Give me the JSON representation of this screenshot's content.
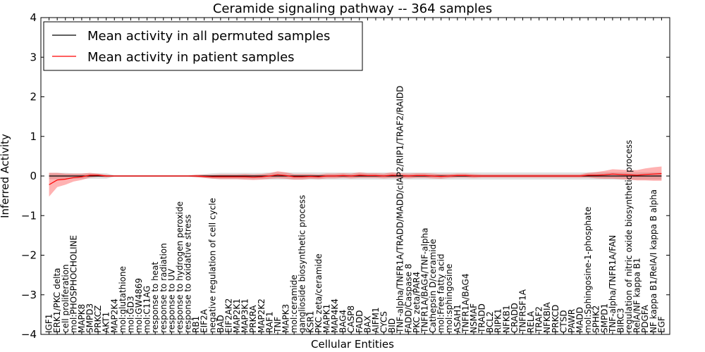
{
  "chart_data": {
    "type": "line",
    "title": "Ceramide signaling pathway -- 364 samples",
    "xlabel": "Cellular Entities",
    "ylabel": "Inferred Activity",
    "ylim": [
      -4,
      4
    ],
    "yticks": [
      -4,
      -3,
      -2,
      -1,
      0,
      1,
      2,
      3,
      4
    ],
    "grid": false,
    "legend_position": "top-left",
    "categories": [
      "IGF1",
      "ERK1/PKC delta",
      "cell proliferation",
      "mol:PHOSPHOCHOLINE",
      "MAPK8",
      "SMPD3",
      "PRKCZ",
      "AKT1",
      "MAP2K4",
      "mol:glutathione",
      "mol:GD3",
      "mol:GW4869",
      "mol:C11AG",
      "response to heat",
      "response to radiation",
      "response to UV",
      "response to hydrogen peroxide",
      "response to oxidative stress",
      "RB1",
      "EIF2A",
      "negative regulation of cell cycle",
      "BAD",
      "EIF2AK2",
      "MAP2K1",
      "MAP3K1",
      "PRKRA",
      "MAP2K2",
      "RAF1",
      "TNF",
      "MAPK3",
      "mol:ceramide",
      "ganglioside biosynthetic process",
      "KSR1",
      "PKC zeta/ceramide",
      "MAPK1",
      "MAP4K4",
      "BAG4",
      "CASP8",
      "FADD",
      "BAX",
      "AIFM1",
      "CYCS",
      "BID",
      "TNF-alpha/TNFR1A/TRADD/MADD/cIAP2/RIP1/TRAF2/RAIDD",
      "FADD/Caspase 8",
      "PKC zeta/PAR4",
      "TNFR1A/BAG4/TNF-alpha",
      "Cathepsin D/ceramide",
      "mol:Free fatty acid",
      "mol:sphingosine",
      "ASAH1",
      "TNFR1A/BAG4",
      "NSMAF",
      "TRADD",
      "BCL2",
      "RIPK1",
      "NFKB1",
      "CRADD",
      "TNFRSF1A",
      "RELA",
      "TRAF2",
      "NFKBIA",
      "PRKCD",
      "CTSD",
      "PAWR",
      "MADD",
      "mol:Sphingosine-1-phosphate",
      "SPHK2",
      "SMPD1",
      "TNF-alpha/TNFR1A/FAN",
      "BIRC3",
      "regulation of nitric oxide biosynthetic process",
      "RelA/NF kappa B1",
      "PDGFA",
      "NF kappa B1/RelA/I kappa B alpha",
      "EGF"
    ],
    "series": [
      {
        "name": "Mean activity in all permuted samples",
        "color": "#000000",
        "values": [
          0.0,
          0.0,
          0.0,
          0.0,
          0.0,
          0.0,
          0.0,
          0.0,
          0.0,
          0.0,
          0.0,
          0.0,
          0.0,
          0.0,
          0.0,
          0.0,
          0.0,
          0.0,
          0.0,
          0.0,
          0.0,
          0.0,
          0.0,
          0.0,
          0.0,
          0.0,
          0.0,
          0.0,
          0.0,
          0.0,
          0.0,
          0.0,
          0.0,
          0.0,
          0.0,
          0.0,
          0.0,
          0.0,
          0.0,
          0.0,
          0.0,
          0.0,
          0.0,
          0.0,
          0.0,
          0.0,
          0.0,
          0.0,
          0.0,
          0.0,
          0.0,
          0.0,
          0.0,
          0.0,
          0.0,
          0.0,
          0.0,
          0.0,
          0.0,
          0.0,
          0.0,
          0.0,
          0.0,
          0.0,
          0.0,
          0.0,
          0.0,
          0.0,
          0.0,
          0.0,
          0.0,
          0.0,
          0.0,
          0.0,
          0.0,
          0.0
        ],
        "band": [
          0.08,
          0.08,
          0.08,
          0.07,
          0.07,
          0.07,
          0.07,
          0.07,
          0.02,
          0.02,
          0.02,
          0.02,
          0.02,
          0.02,
          0.02,
          0.02,
          0.02,
          0.02,
          0.03,
          0.05,
          0.07,
          0.08,
          0.08,
          0.08,
          0.08,
          0.08,
          0.08,
          0.09,
          0.09,
          0.09,
          0.09,
          0.09,
          0.09,
          0.09,
          0.09,
          0.09,
          0.09,
          0.09,
          0.09,
          0.09,
          0.09,
          0.09,
          0.09,
          0.09,
          0.09,
          0.09,
          0.09,
          0.09,
          0.09,
          0.09,
          0.09,
          0.09,
          0.09,
          0.09,
          0.09,
          0.09,
          0.09,
          0.09,
          0.09,
          0.09,
          0.09,
          0.09,
          0.09,
          0.09,
          0.09,
          0.09,
          0.09,
          0.09,
          0.09,
          0.09,
          0.09,
          0.09,
          0.09,
          0.09,
          0.09,
          0.09
        ]
      },
      {
        "name": "Mean activity in patient samples",
        "color": "#ff0000",
        "values": [
          -0.22,
          -0.1,
          -0.08,
          -0.04,
          -0.02,
          0.02,
          0.02,
          0.0,
          0.0,
          0.0,
          0.0,
          0.0,
          0.0,
          0.0,
          0.0,
          0.0,
          0.0,
          0.0,
          0.0,
          -0.01,
          -0.02,
          -0.02,
          -0.02,
          -0.02,
          -0.02,
          -0.03,
          -0.02,
          0.0,
          0.03,
          0.01,
          -0.02,
          -0.02,
          -0.01,
          -0.02,
          0.0,
          0.0,
          0.01,
          0.0,
          0.02,
          0.01,
          0.01,
          0.0,
          0.02,
          0.01,
          0.0,
          0.01,
          0.01,
          0.0,
          -0.01,
          0.0,
          0.01,
          0.01,
          0.0,
          0.0,
          0.0,
          0.0,
          0.0,
          0.0,
          0.0,
          0.0,
          0.0,
          0.0,
          0.0,
          0.0,
          0.0,
          0.0,
          0.02,
          0.02,
          0.03,
          0.05,
          0.04,
          0.03,
          0.02,
          0.04,
          0.05,
          0.06
        ],
        "band": [
          0.3,
          0.18,
          0.14,
          0.1,
          0.08,
          0.06,
          0.04,
          0.03,
          0.01,
          0.01,
          0.01,
          0.01,
          0.01,
          0.01,
          0.01,
          0.01,
          0.01,
          0.01,
          0.03,
          0.04,
          0.05,
          0.06,
          0.06,
          0.06,
          0.07,
          0.07,
          0.07,
          0.07,
          0.09,
          0.08,
          0.07,
          0.07,
          0.06,
          0.06,
          0.06,
          0.06,
          0.06,
          0.06,
          0.07,
          0.06,
          0.06,
          0.06,
          0.07,
          0.06,
          0.06,
          0.06,
          0.06,
          0.06,
          0.06,
          0.05,
          0.05,
          0.05,
          0.05,
          0.04,
          0.04,
          0.04,
          0.04,
          0.04,
          0.04,
          0.04,
          0.04,
          0.04,
          0.04,
          0.04,
          0.04,
          0.04,
          0.06,
          0.08,
          0.1,
          0.12,
          0.12,
          0.12,
          0.13,
          0.15,
          0.17,
          0.18
        ]
      }
    ]
  }
}
